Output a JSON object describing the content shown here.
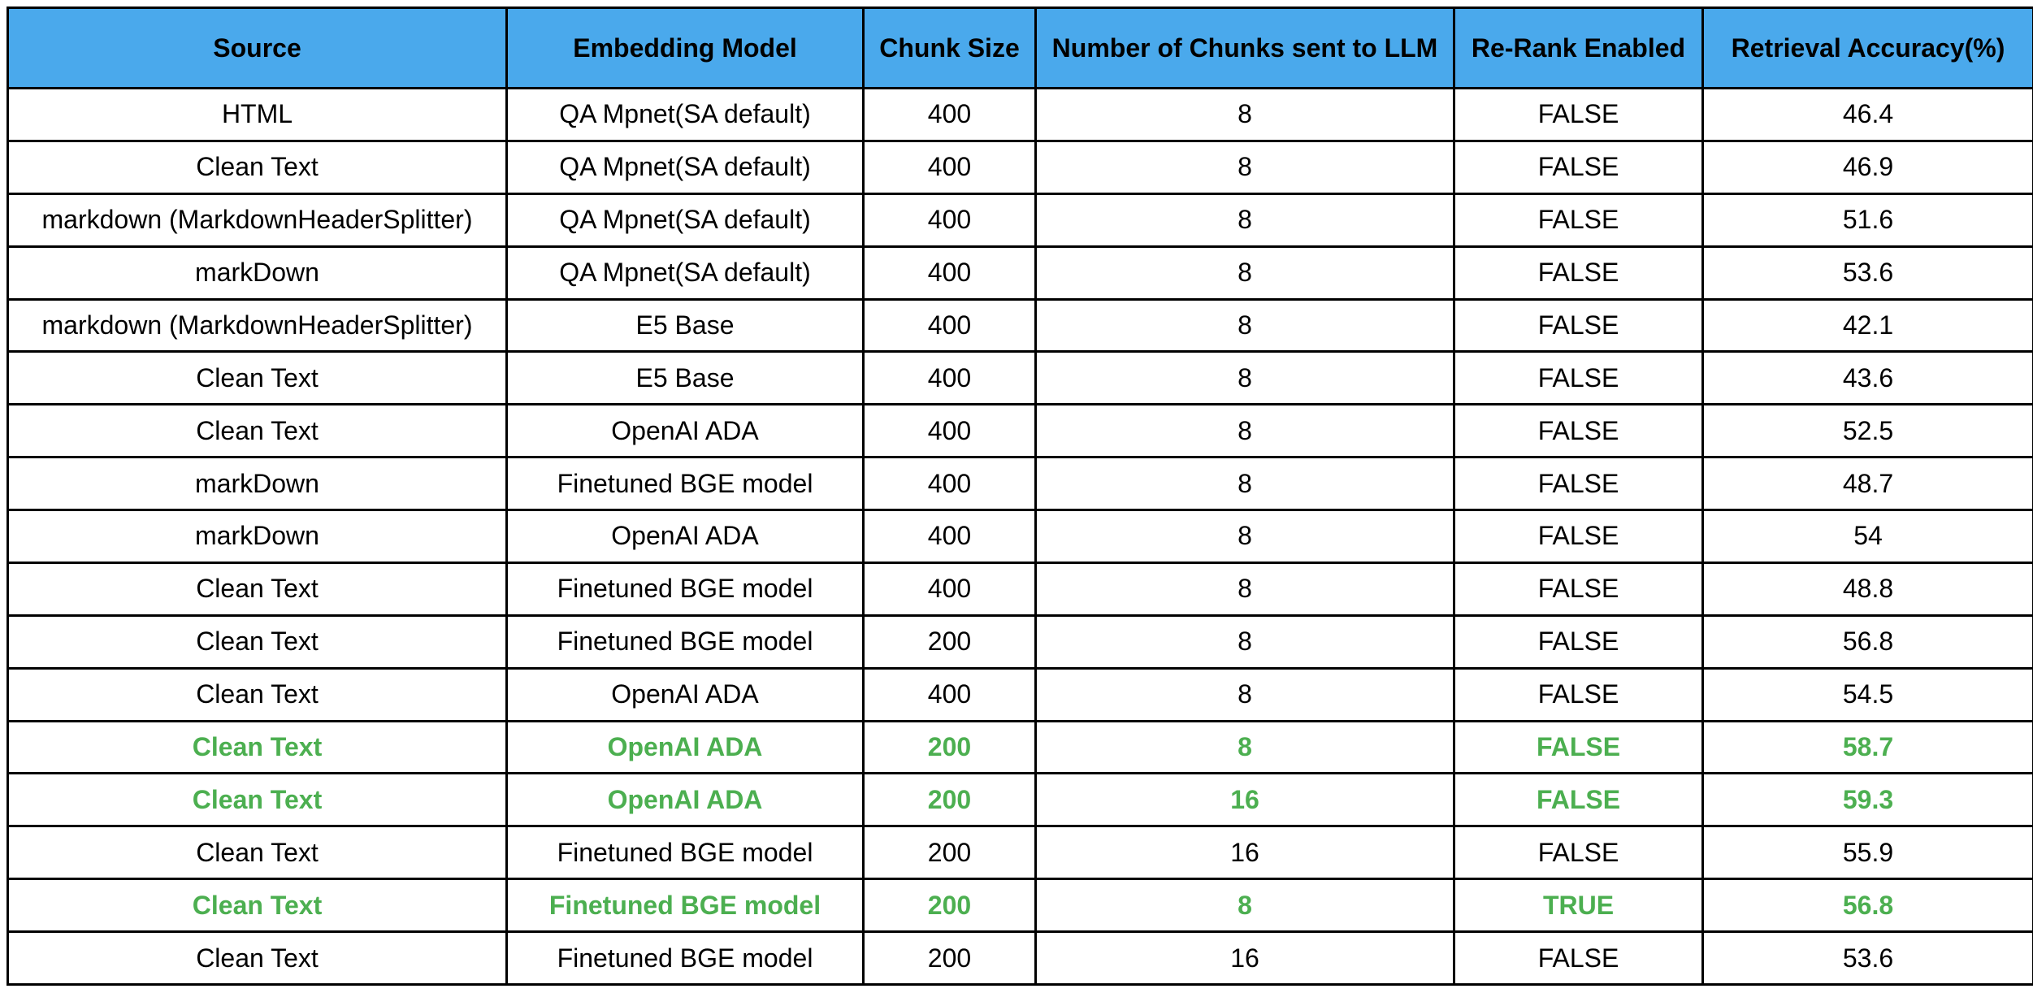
{
  "table": {
    "headers": [
      "Source",
      "Embedding Model",
      "Chunk Size",
      "Number of Chunks sent to LLM",
      "Re-Rank Enabled",
      "Retrieval Accuracy(%)"
    ],
    "rows": [
      {
        "cells": [
          "HTML",
          "QA Mpnet(SA default)",
          "400",
          "8",
          "FALSE",
          "46.4"
        ],
        "highlight": false
      },
      {
        "cells": [
          "Clean Text",
          "QA Mpnet(SA default)",
          "400",
          "8",
          "FALSE",
          "46.9"
        ],
        "highlight": false
      },
      {
        "cells": [
          "markdown (MarkdownHeaderSplitter)",
          "QA Mpnet(SA default)",
          "400",
          "8",
          "FALSE",
          "51.6"
        ],
        "highlight": false
      },
      {
        "cells": [
          "markDown",
          "QA Mpnet(SA default)",
          "400",
          "8",
          "FALSE",
          "53.6"
        ],
        "highlight": false
      },
      {
        "cells": [
          "markdown (MarkdownHeaderSplitter)",
          "E5 Base",
          "400",
          "8",
          "FALSE",
          "42.1"
        ],
        "highlight": false
      },
      {
        "cells": [
          "Clean Text",
          "E5 Base",
          "400",
          "8",
          "FALSE",
          "43.6"
        ],
        "highlight": false
      },
      {
        "cells": [
          "Clean Text",
          "OpenAI ADA",
          "400",
          "8",
          "FALSE",
          "52.5"
        ],
        "highlight": false
      },
      {
        "cells": [
          "markDown",
          "Finetuned BGE model",
          "400",
          "8",
          "FALSE",
          "48.7"
        ],
        "highlight": false
      },
      {
        "cells": [
          "markDown",
          "OpenAI ADA",
          "400",
          "8",
          "FALSE",
          "54"
        ],
        "highlight": false
      },
      {
        "cells": [
          "Clean Text",
          "Finetuned BGE model",
          "400",
          "8",
          "FALSE",
          "48.8"
        ],
        "highlight": false
      },
      {
        "cells": [
          "Clean Text",
          "Finetuned BGE model",
          "200",
          "8",
          "FALSE",
          "56.8"
        ],
        "highlight": false
      },
      {
        "cells": [
          "Clean Text",
          "OpenAI ADA",
          "400",
          "8",
          "FALSE",
          "54.5"
        ],
        "highlight": false
      },
      {
        "cells": [
          "Clean Text",
          "OpenAI ADA",
          "200",
          "8",
          "FALSE",
          "58.7"
        ],
        "highlight": true
      },
      {
        "cells": [
          "Clean Text",
          "OpenAI ADA",
          "200",
          "16",
          "FALSE",
          "59.3"
        ],
        "highlight": true
      },
      {
        "cells": [
          "Clean Text",
          "Finetuned BGE model",
          "200",
          "16",
          "FALSE",
          "55.9"
        ],
        "highlight": false
      },
      {
        "cells": [
          "Clean Text",
          "Finetuned BGE model",
          "200",
          "8",
          "TRUE",
          "56.8"
        ],
        "highlight": true
      },
      {
        "cells": [
          "Clean Text",
          "Finetuned BGE model",
          "200",
          "16",
          "FALSE",
          "53.6"
        ],
        "highlight": false
      }
    ],
    "colors": {
      "header_background": "#4aa9ec",
      "highlight_text": "#4caf50",
      "border": "#000000"
    }
  }
}
